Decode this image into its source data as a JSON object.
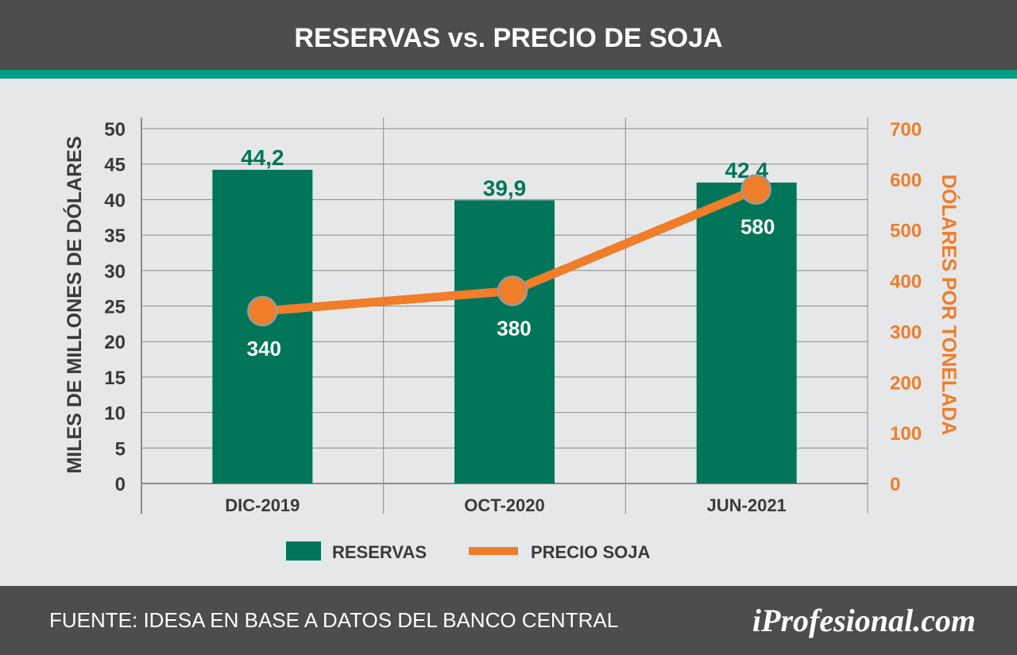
{
  "header": {
    "title": "RESERVAS vs. PRECIO DE SOJA"
  },
  "footer": {
    "source": "FUENTE: IDESA EN BASE A DATOS DEL BANCO CENTRAL",
    "logo": "iProfesional.com"
  },
  "colors": {
    "bar": "#007559",
    "line": "#ef7d2a",
    "accent": "#009e84",
    "band": "#4d4d4d",
    "background": "#e6e7e8",
    "axis_text": "#3a3a3a",
    "grid": "#8c8c8c"
  },
  "chart_data": {
    "type": "bar",
    "title": "RESERVAS vs. PRECIO DE SOJA",
    "categories": [
      "DIC-2019",
      "OCT-2020",
      "JUN-2021"
    ],
    "series": [
      {
        "name": "RESERVAS",
        "type": "bar",
        "axis": "left",
        "values": [
          44.2,
          39.9,
          42.4
        ],
        "labels": [
          "44,2",
          "39,9",
          "42,4"
        ]
      },
      {
        "name": "PRECIO SOJA",
        "type": "line",
        "axis": "right",
        "values": [
          340,
          380,
          580
        ],
        "labels": [
          "340",
          "380",
          "580"
        ]
      }
    ],
    "ylabel": "MILES  DE  MILLONES  DE  DÓLARES",
    "y2label": "DÓLARES  POR  TONELADA",
    "ylim": [
      0,
      50
    ],
    "y2lim": [
      0,
      700
    ],
    "yticks": [
      0,
      5,
      10,
      15,
      20,
      25,
      30,
      35,
      40,
      45,
      50
    ],
    "y2ticks": [
      0,
      100,
      200,
      300,
      400,
      500,
      600,
      700
    ],
    "grid": true,
    "legend": {
      "position": "bottom",
      "entries": [
        "RESERVAS",
        "PRECIO SOJA"
      ]
    }
  }
}
